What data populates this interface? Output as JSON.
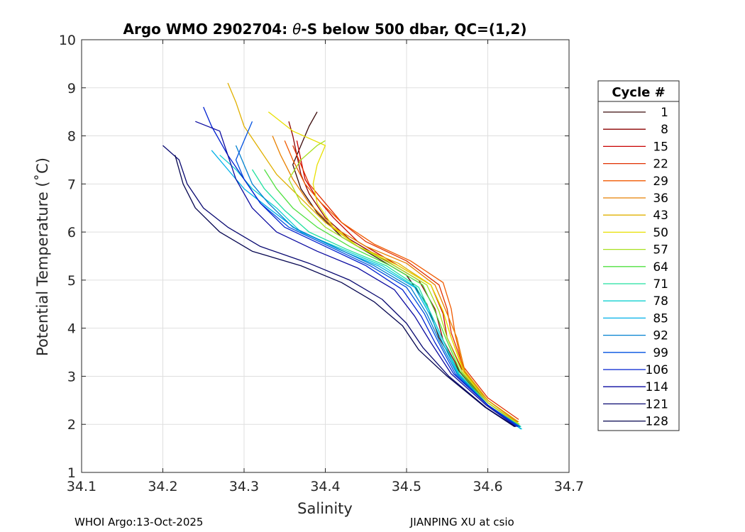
{
  "chart_data": {
    "type": "line",
    "title_prefix": "Argo WMO 2902704: ",
    "title_symbol": "θ",
    "title_suffix": "-S below 500 dbar,  QC=(1,2)",
    "xlabel": "Salinity",
    "ylabel": "Potential Temperature (˚C)",
    "xlim": [
      34.1,
      34.7
    ],
    "ylim": [
      1,
      10
    ],
    "xticks": [
      "34.1",
      "34.2",
      "34.3",
      "34.4",
      "34.5",
      "34.6",
      "34.7"
    ],
    "yticks": [
      "1",
      "2",
      "3",
      "4",
      "5",
      "6",
      "7",
      "8",
      "9",
      "10"
    ],
    "grid": true,
    "legend": {
      "title": "Cycle #",
      "position": "outside-right",
      "entries": [
        {
          "label": "1",
          "color": "#3a0a0a"
        },
        {
          "label": "8",
          "color": "#8b0000"
        },
        {
          "label": "15",
          "color": "#c80000"
        },
        {
          "label": "22",
          "color": "#e03000"
        },
        {
          "label": "29",
          "color": "#f05a00"
        },
        {
          "label": "36",
          "color": "#e88000"
        },
        {
          "label": "43",
          "color": "#e0b000"
        },
        {
          "label": "50",
          "color": "#e8e000"
        },
        {
          "label": "57",
          "color": "#a8e020"
        },
        {
          "label": "64",
          "color": "#50e040"
        },
        {
          "label": "71",
          "color": "#20e0a0"
        },
        {
          "label": "78",
          "color": "#10d0d0"
        },
        {
          "label": "85",
          "color": "#00b0e8"
        },
        {
          "label": "92",
          "color": "#0080d0"
        },
        {
          "label": "99",
          "color": "#0050e0"
        },
        {
          "label": "106",
          "color": "#0020d0"
        },
        {
          "label": "114",
          "color": "#0a0aa0"
        },
        {
          "label": "121",
          "color": "#080870"
        },
        {
          "label": "128",
          "color": "#060650"
        }
      ]
    },
    "series": [
      {
        "cycle": "1",
        "color": "#3a0a0a",
        "points": [
          [
            34.639,
            1.95
          ],
          [
            34.6,
            2.4
          ],
          [
            34.565,
            3.1
          ],
          [
            34.54,
            3.8
          ],
          [
            34.525,
            4.5
          ],
          [
            34.5,
            5.1
          ],
          [
            34.46,
            5.5
          ],
          [
            34.42,
            5.9
          ],
          [
            34.39,
            6.4
          ],
          [
            34.37,
            6.9
          ],
          [
            34.36,
            7.4
          ],
          [
            34.37,
            7.8
          ],
          [
            34.38,
            8.2
          ],
          [
            34.39,
            8.5
          ]
        ]
      },
      {
        "cycle": "8",
        "color": "#8b0000",
        "points": [
          [
            34.638,
            2.0
          ],
          [
            34.6,
            2.45
          ],
          [
            34.566,
            3.1
          ],
          [
            34.545,
            3.75
          ],
          [
            34.535,
            4.4
          ],
          [
            34.515,
            5.0
          ],
          [
            34.47,
            5.45
          ],
          [
            34.43,
            5.85
          ],
          [
            34.4,
            6.3
          ],
          [
            34.38,
            6.8
          ],
          [
            34.37,
            7.2
          ],
          [
            34.365,
            7.6
          ],
          [
            34.36,
            8.0
          ],
          [
            34.355,
            8.3
          ]
        ]
      },
      {
        "cycle": "15",
        "color": "#c80000",
        "points": [
          [
            34.637,
            2.05
          ],
          [
            34.6,
            2.5
          ],
          [
            34.568,
            3.15
          ],
          [
            34.55,
            3.8
          ],
          [
            34.545,
            4.3
          ],
          [
            34.53,
            4.9
          ],
          [
            34.48,
            5.4
          ],
          [
            34.44,
            5.8
          ],
          [
            34.41,
            6.3
          ],
          [
            34.39,
            6.7
          ],
          [
            34.375,
            7.1
          ],
          [
            34.37,
            7.5
          ],
          [
            34.365,
            7.9
          ]
        ]
      },
      {
        "cycle": "22",
        "color": "#e03000",
        "points": [
          [
            34.638,
            2.1
          ],
          [
            34.6,
            2.55
          ],
          [
            34.57,
            3.2
          ],
          [
            34.555,
            3.9
          ],
          [
            34.55,
            4.4
          ],
          [
            34.54,
            4.9
          ],
          [
            34.5,
            5.4
          ],
          [
            34.45,
            5.8
          ],
          [
            34.42,
            6.2
          ],
          [
            34.4,
            6.6
          ],
          [
            34.38,
            7.0
          ],
          [
            34.37,
            7.4
          ],
          [
            34.36,
            7.8
          ]
        ]
      },
      {
        "cycle": "29",
        "color": "#f05a00",
        "points": [
          [
            34.636,
            2.05
          ],
          [
            34.6,
            2.5
          ],
          [
            34.57,
            3.15
          ],
          [
            34.56,
            3.85
          ],
          [
            34.555,
            4.4
          ],
          [
            34.545,
            4.95
          ],
          [
            34.505,
            5.4
          ],
          [
            34.46,
            5.75
          ],
          [
            34.42,
            6.2
          ],
          [
            34.395,
            6.6
          ],
          [
            34.375,
            7.0
          ],
          [
            34.36,
            7.5
          ],
          [
            34.35,
            7.9
          ]
        ]
      },
      {
        "cycle": "36",
        "color": "#e88000",
        "points": [
          [
            34.637,
            2.0
          ],
          [
            34.6,
            2.45
          ],
          [
            34.572,
            3.1
          ],
          [
            34.562,
            3.8
          ],
          [
            34.55,
            4.3
          ],
          [
            34.535,
            4.9
          ],
          [
            34.5,
            5.35
          ],
          [
            34.45,
            5.7
          ],
          [
            34.41,
            6.1
          ],
          [
            34.38,
            6.6
          ],
          [
            34.36,
            7.1
          ],
          [
            34.345,
            7.6
          ],
          [
            34.335,
            8.0
          ]
        ]
      },
      {
        "cycle": "43",
        "color": "#e0b000",
        "points": [
          [
            34.638,
            2.05
          ],
          [
            34.6,
            2.5
          ],
          [
            34.57,
            3.15
          ],
          [
            34.555,
            3.8
          ],
          [
            34.545,
            4.35
          ],
          [
            34.53,
            4.9
          ],
          [
            34.49,
            5.35
          ],
          [
            34.44,
            5.7
          ],
          [
            34.4,
            6.2
          ],
          [
            34.37,
            6.7
          ],
          [
            34.34,
            7.2
          ],
          [
            34.32,
            7.7
          ],
          [
            34.3,
            8.2
          ],
          [
            34.29,
            8.7
          ],
          [
            34.28,
            9.1
          ]
        ]
      },
      {
        "cycle": "50",
        "color": "#e8e000",
        "points": [
          [
            34.638,
            2.0
          ],
          [
            34.6,
            2.45
          ],
          [
            34.57,
            3.1
          ],
          [
            34.555,
            3.8
          ],
          [
            34.545,
            4.35
          ],
          [
            34.53,
            4.9
          ],
          [
            34.49,
            5.3
          ],
          [
            34.44,
            5.7
          ],
          [
            34.41,
            6.1
          ],
          [
            34.39,
            6.6
          ],
          [
            34.385,
            7.0
          ],
          [
            34.39,
            7.4
          ],
          [
            34.4,
            7.8
          ],
          [
            34.36,
            8.1
          ],
          [
            34.33,
            8.5
          ]
        ]
      },
      {
        "cycle": "57",
        "color": "#a8e020",
        "points": [
          [
            34.639,
            2.0
          ],
          [
            34.6,
            2.45
          ],
          [
            34.568,
            3.1
          ],
          [
            34.55,
            3.8
          ],
          [
            34.54,
            4.35
          ],
          [
            34.525,
            4.9
          ],
          [
            34.485,
            5.3
          ],
          [
            34.44,
            5.7
          ],
          [
            34.4,
            6.1
          ],
          [
            34.37,
            6.6
          ],
          [
            34.355,
            7.1
          ],
          [
            34.37,
            7.5
          ],
          [
            34.39,
            7.8
          ],
          [
            34.4,
            7.9
          ]
        ]
      },
      {
        "cycle": "64",
        "color": "#50e040",
        "points": [
          [
            34.64,
            1.95
          ],
          [
            34.6,
            2.4
          ],
          [
            34.566,
            3.1
          ],
          [
            34.548,
            3.8
          ],
          [
            34.535,
            4.35
          ],
          [
            34.52,
            4.9
          ],
          [
            34.48,
            5.3
          ],
          [
            34.43,
            5.7
          ],
          [
            34.39,
            6.1
          ],
          [
            34.36,
            6.5
          ],
          [
            34.34,
            6.9
          ],
          [
            34.325,
            7.3
          ]
        ]
      },
      {
        "cycle": "71",
        "color": "#20e0a0",
        "points": [
          [
            34.641,
            1.95
          ],
          [
            34.6,
            2.4
          ],
          [
            34.565,
            3.05
          ],
          [
            34.545,
            3.75
          ],
          [
            34.53,
            4.3
          ],
          [
            34.515,
            4.85
          ],
          [
            34.475,
            5.3
          ],
          [
            34.425,
            5.65
          ],
          [
            34.38,
            6.0
          ],
          [
            34.35,
            6.45
          ],
          [
            34.325,
            6.9
          ],
          [
            34.31,
            7.3
          ]
        ]
      },
      {
        "cycle": "78",
        "color": "#10d0d0",
        "points": [
          [
            34.642,
            1.9
          ],
          [
            34.6,
            2.4
          ],
          [
            34.564,
            3.05
          ],
          [
            34.545,
            3.75
          ],
          [
            34.53,
            4.3
          ],
          [
            34.512,
            4.85
          ],
          [
            34.47,
            5.3
          ],
          [
            34.42,
            5.65
          ],
          [
            34.37,
            6.0
          ],
          [
            34.34,
            6.5
          ],
          [
            34.31,
            6.9
          ],
          [
            34.29,
            7.3
          ],
          [
            34.27,
            7.6
          ]
        ]
      },
      {
        "cycle": "85",
        "color": "#00b0e8",
        "points": [
          [
            34.641,
            1.9
          ],
          [
            34.6,
            2.4
          ],
          [
            34.563,
            3.05
          ],
          [
            34.543,
            3.75
          ],
          [
            34.528,
            4.3
          ],
          [
            34.51,
            4.85
          ],
          [
            34.465,
            5.3
          ],
          [
            34.415,
            5.65
          ],
          [
            34.365,
            6.05
          ],
          [
            34.33,
            6.5
          ],
          [
            34.3,
            6.9
          ],
          [
            34.28,
            7.3
          ],
          [
            34.26,
            7.7
          ]
        ]
      },
      {
        "cycle": "92",
        "color": "#0080d0",
        "points": [
          [
            34.64,
            1.95
          ],
          [
            34.6,
            2.4
          ],
          [
            34.562,
            3.05
          ],
          [
            34.54,
            3.75
          ],
          [
            34.525,
            4.3
          ],
          [
            34.505,
            4.85
          ],
          [
            34.46,
            5.3
          ],
          [
            34.41,
            5.7
          ],
          [
            34.36,
            6.1
          ],
          [
            34.33,
            6.6
          ],
          [
            34.31,
            7.0
          ],
          [
            34.3,
            7.4
          ],
          [
            34.29,
            7.8
          ]
        ]
      },
      {
        "cycle": "99",
        "color": "#0050e0",
        "points": [
          [
            34.639,
            1.95
          ],
          [
            34.6,
            2.4
          ],
          [
            34.56,
            3.05
          ],
          [
            34.538,
            3.75
          ],
          [
            34.522,
            4.3
          ],
          [
            34.5,
            4.85
          ],
          [
            34.455,
            5.3
          ],
          [
            34.405,
            5.7
          ],
          [
            34.355,
            6.1
          ],
          [
            34.32,
            6.6
          ],
          [
            34.3,
            7.1
          ],
          [
            34.29,
            7.5
          ],
          [
            34.3,
            7.9
          ],
          [
            34.31,
            8.3
          ]
        ]
      },
      {
        "cycle": "106",
        "color": "#0020d0",
        "points": [
          [
            34.637,
            1.95
          ],
          [
            34.6,
            2.4
          ],
          [
            34.558,
            3.05
          ],
          [
            34.535,
            3.7
          ],
          [
            34.518,
            4.25
          ],
          [
            34.495,
            4.8
          ],
          [
            34.45,
            5.3
          ],
          [
            34.4,
            5.7
          ],
          [
            34.35,
            6.1
          ],
          [
            34.32,
            6.6
          ],
          [
            34.3,
            7.1
          ],
          [
            34.28,
            7.6
          ],
          [
            34.26,
            8.2
          ],
          [
            34.25,
            8.6
          ]
        ]
      },
      {
        "cycle": "114",
        "color": "#0a0aa0",
        "points": [
          [
            34.635,
            1.95
          ],
          [
            34.598,
            2.4
          ],
          [
            34.555,
            3.05
          ],
          [
            34.53,
            3.7
          ],
          [
            34.51,
            4.25
          ],
          [
            34.485,
            4.8
          ],
          [
            34.44,
            5.25
          ],
          [
            34.39,
            5.6
          ],
          [
            34.34,
            6.0
          ],
          [
            34.31,
            6.5
          ],
          [
            34.29,
            7.1
          ],
          [
            34.28,
            7.6
          ],
          [
            34.27,
            8.1
          ],
          [
            34.24,
            8.3
          ]
        ]
      },
      {
        "cycle": "121",
        "color": "#080870",
        "points": [
          [
            34.634,
            1.95
          ],
          [
            34.598,
            2.35
          ],
          [
            34.552,
            3.0
          ],
          [
            34.52,
            3.6
          ],
          [
            34.5,
            4.1
          ],
          [
            34.47,
            4.6
          ],
          [
            34.43,
            5.0
          ],
          [
            34.38,
            5.35
          ],
          [
            34.32,
            5.7
          ],
          [
            34.28,
            6.1
          ],
          [
            34.25,
            6.5
          ],
          [
            34.23,
            7.0
          ],
          [
            34.22,
            7.5
          ],
          [
            34.2,
            7.8
          ]
        ]
      },
      {
        "cycle": "128",
        "color": "#060650",
        "points": [
          [
            34.633,
            1.95
          ],
          [
            34.597,
            2.35
          ],
          [
            34.55,
            3.0
          ],
          [
            34.515,
            3.55
          ],
          [
            34.495,
            4.05
          ],
          [
            34.46,
            4.55
          ],
          [
            34.42,
            4.95
          ],
          [
            34.37,
            5.3
          ],
          [
            34.31,
            5.6
          ],
          [
            34.27,
            6.0
          ],
          [
            34.24,
            6.5
          ],
          [
            34.225,
            7.0
          ],
          [
            34.215,
            7.6
          ]
        ]
      }
    ]
  },
  "footer": {
    "left": "WHOI Argo:13-Oct-2025",
    "right": "JIANPING XU at csio"
  }
}
